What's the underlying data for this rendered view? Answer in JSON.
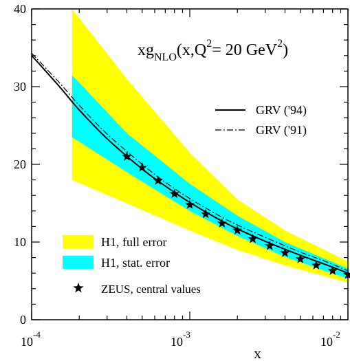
{
  "chart_data": {
    "type": "line",
    "title": {
      "main": "xg",
      "sub": "NLO",
      "mid": "(x,Q",
      "sup": "2",
      "tail": "= 20 GeV",
      "sup2": "2",
      "end": ")"
    },
    "xlabel": "x",
    "ylabel": "",
    "x_scale": "log",
    "xlim": [
      0.0001,
      0.01
    ],
    "ylim": [
      0,
      40
    ],
    "x_ticks": [
      {
        "base": "10",
        "exp": "-4"
      },
      {
        "base": "10",
        "exp": "-3"
      },
      {
        "base": "10",
        "exp": "-2"
      }
    ],
    "y_ticks": [
      "0",
      "10",
      "20",
      "30",
      "40"
    ],
    "grid": false,
    "legend_position": "right and lower-left",
    "colors": {
      "full_error": "#ffff00",
      "stat_error": "#00ffff",
      "ink": "#000000"
    },
    "bands": [
      {
        "name": "H1, full error",
        "color": "#ffff00",
        "x": [
          0.00018,
          0.0004,
          0.001,
          0.002,
          0.004,
          0.01
        ],
        "upper": [
          40,
          31,
          21.5,
          15.5,
          11.5,
          7.5
        ],
        "lower": [
          18,
          15,
          11.5,
          9,
          7,
          4.8
        ]
      },
      {
        "name": "H1, stat. error",
        "color": "#00ffff",
        "x": [
          0.00018,
          0.0004,
          0.001,
          0.002,
          0.004,
          0.01
        ],
        "upper": [
          31.5,
          24,
          17.5,
          13.4,
          10,
          6.6
        ],
        "lower": [
          23.5,
          19,
          14,
          10.8,
          8.1,
          5.3
        ]
      }
    ],
    "series": [
      {
        "name": "GRV ('94)",
        "style": "solid",
        "x": [
          0.0001,
          0.00015,
          0.0002,
          0.0003,
          0.0005,
          0.0007,
          0.001,
          0.0015,
          0.002,
          0.003,
          0.005,
          0.007,
          0.01,
          0.012
        ],
        "y": [
          34,
          30,
          27,
          23.3,
          19.4,
          17.2,
          15.1,
          13,
          11.7,
          10.1,
          8.3,
          7.2,
          6,
          5.2
        ]
      },
      {
        "name": "GRV ('91)",
        "style": "dashdot",
        "x": [
          0.0001,
          0.00015,
          0.0002,
          0.0003,
          0.0005,
          0.0007,
          0.001,
          0.0015,
          0.002,
          0.003,
          0.005,
          0.007,
          0.01,
          0.012
        ],
        "y": [
          34.3,
          30.5,
          27.6,
          23.9,
          20,
          17.7,
          15.6,
          13.5,
          12.2,
          10.6,
          8.7,
          7.6,
          6.3,
          5.6
        ]
      }
    ],
    "points": {
      "name": "ZEUS, central values",
      "marker": "star",
      "x": [
        0.0004,
        0.0005,
        0.00063,
        0.0008,
        0.001,
        0.00126,
        0.0016,
        0.002,
        0.0025,
        0.0032,
        0.004,
        0.005,
        0.0063,
        0.008,
        0.01
      ],
      "y": [
        21,
        19.6,
        17.9,
        16.2,
        14.8,
        13.6,
        12.4,
        11.5,
        10.4,
        9.5,
        8.6,
        7.8,
        7,
        6.3,
        5.8
      ]
    }
  }
}
